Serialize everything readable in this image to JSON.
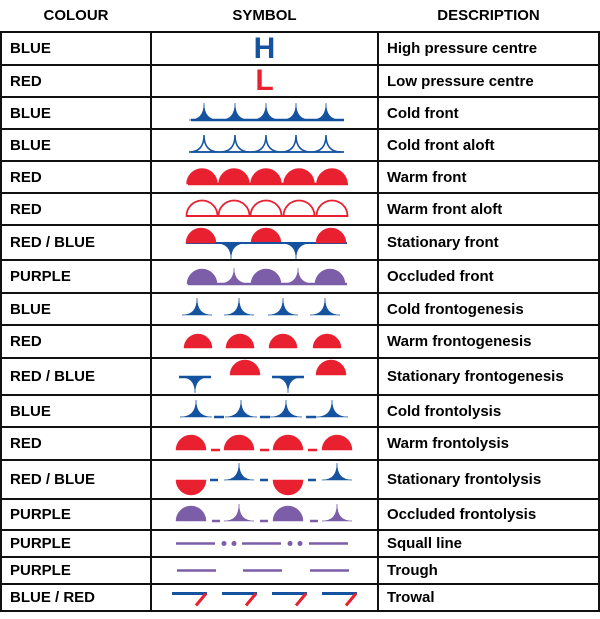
{
  "headers": {
    "colour": "COLOUR",
    "symbol": "SYMBOL",
    "description": "DESCRIPTION"
  },
  "colors": {
    "blue": "#1553a0",
    "red": "#e8202f",
    "purple": "#7b5ea7"
  },
  "rows": [
    {
      "colour": "BLUE",
      "symbol": "H",
      "symbol_icon": "high-pressure-letter",
      "description": "High pressure centre"
    },
    {
      "colour": "RED",
      "symbol": "L",
      "symbol_icon": "low-pressure-letter",
      "description": "Low pressure centre"
    },
    {
      "colour": "BLUE",
      "symbol_icon": "cold-front",
      "description": "Cold front"
    },
    {
      "colour": "BLUE",
      "symbol_icon": "cold-front-aloft",
      "description": "Cold front aloft"
    },
    {
      "colour": "RED",
      "symbol_icon": "warm-front",
      "description": "Warm front"
    },
    {
      "colour": "RED",
      "symbol_icon": "warm-front-aloft",
      "description": "Warm front aloft"
    },
    {
      "colour": "RED / BLUE",
      "symbol_icon": "stationary-front",
      "description": "Stationary front"
    },
    {
      "colour": "PURPLE",
      "symbol_icon": "occluded-front",
      "description": "Occluded front"
    },
    {
      "colour": "BLUE",
      "symbol_icon": "cold-frontogenesis",
      "description": "Cold frontogenesis"
    },
    {
      "colour": "RED",
      "symbol_icon": "warm-frontogenesis",
      "description": "Warm frontogenesis"
    },
    {
      "colour": "RED / BLUE",
      "symbol_icon": "stationary-frontogenesis",
      "description": "Stationary frontogenesis"
    },
    {
      "colour": "BLUE",
      "symbol_icon": "cold-frontolysis",
      "description": "Cold frontolysis"
    },
    {
      "colour": "RED",
      "symbol_icon": "warm-frontolysis",
      "description": "Warm frontolysis"
    },
    {
      "colour": "RED / BLUE",
      "symbol_icon": "stationary-frontolysis",
      "description": "Stationary frontolysis"
    },
    {
      "colour": "PURPLE",
      "symbol_icon": "occluded-frontolysis",
      "description": "Occluded frontolysis"
    },
    {
      "colour": "PURPLE",
      "symbol_icon": "squall-line",
      "description": "Squall line"
    },
    {
      "colour": "PURPLE",
      "symbol_icon": "trough",
      "description": "Trough"
    },
    {
      "colour": "BLUE / RED",
      "symbol_icon": "trowal",
      "description": "Trowal"
    }
  ]
}
